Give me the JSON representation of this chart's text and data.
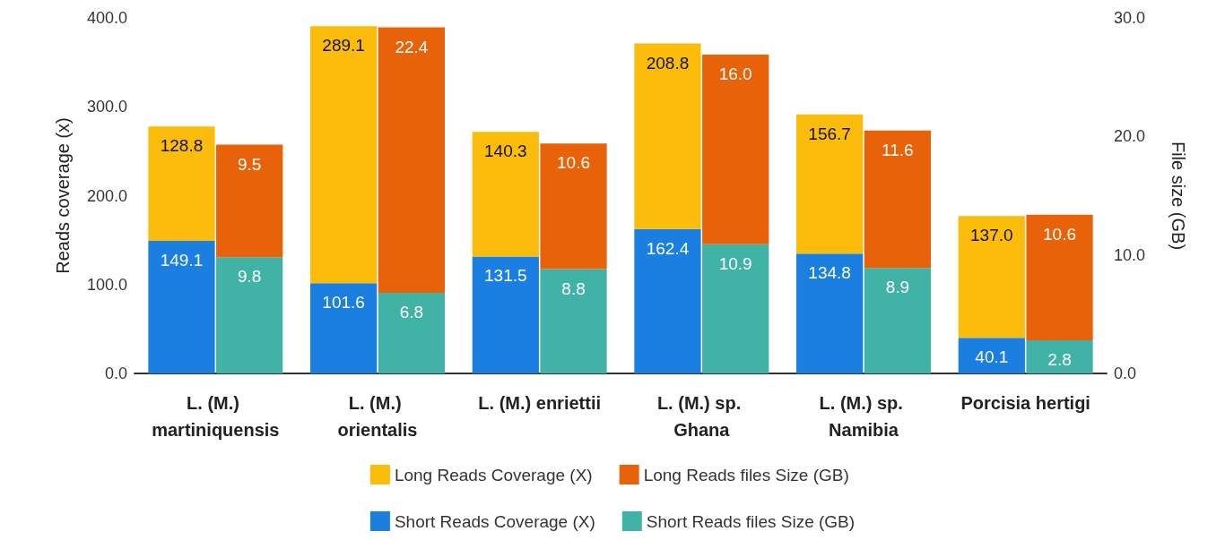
{
  "chart_data": {
    "type": "bar",
    "stacked": true,
    "categories": [
      "L. (M.) martiniquensis",
      "L. (M.) orientalis",
      "L. (M.) enriettii",
      "L. (M.) sp. Ghana",
      "L. (M.) sp. Namibia",
      "Porcisia hertigi"
    ],
    "ylabel": "Reads coverage (x)",
    "y2label": "File size (GB)",
    "ylim": [
      0,
      400
    ],
    "yticks": [
      {
        "value": 0,
        "label": "0.0"
      },
      {
        "value": 100,
        "label": "100.0"
      },
      {
        "value": 200,
        "label": "200.0"
      },
      {
        "value": 300,
        "label": "300.0"
      },
      {
        "value": 400,
        "label": "400.0"
      }
    ],
    "y2lim": [
      0,
      30
    ],
    "y2ticks": [
      {
        "value": 0,
        "label": "0.0"
      },
      {
        "value": 10,
        "label": "10.0"
      },
      {
        "value": 20,
        "label": "20.0"
      },
      {
        "value": 30,
        "label": "30.0"
      }
    ],
    "series": [
      {
        "name": "Short Reads Coverage (X)",
        "color": "#1a7fe0",
        "axis": "y",
        "values": [
          149.1,
          101.6,
          131.5,
          162.4,
          134.8,
          40.1
        ],
        "value_labels": [
          "149.1",
          "101.6",
          "131.5",
          "162.4",
          "134.8",
          "40.1"
        ]
      },
      {
        "name": "Long Reads Coverage (X)",
        "color": "#fbbc0c",
        "axis": "y",
        "values": [
          128.8,
          289.1,
          140.3,
          208.8,
          156.7,
          137.0
        ],
        "value_labels": [
          "128.8",
          "289.1",
          "140.3",
          "208.8",
          "156.7",
          "137.0"
        ]
      },
      {
        "name": "Short Reads files Size (GB)",
        "color": "#40b2a6",
        "axis": "y2",
        "values": [
          9.8,
          6.8,
          8.8,
          10.9,
          8.9,
          2.8
        ],
        "value_labels": [
          "9.8",
          "6.8",
          "8.8",
          "10.9",
          "8.9",
          "2.8"
        ]
      },
      {
        "name": "Long Reads files Size (GB)",
        "color": "#e8620a",
        "axis": "y2",
        "values": [
          9.5,
          22.4,
          10.6,
          16.0,
          11.6,
          10.6
        ],
        "value_labels": [
          "9.5",
          "22.4",
          "10.6",
          "16.0",
          "11.6",
          "10.6"
        ]
      }
    ],
    "legend": "bottom",
    "grid": false
  }
}
